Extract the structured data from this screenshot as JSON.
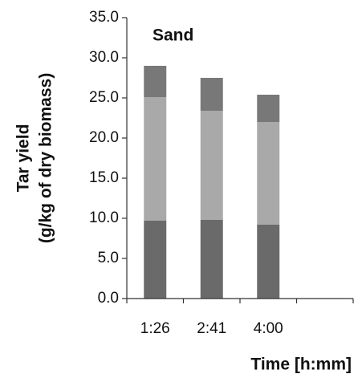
{
  "chart_data": {
    "type": "stacked-bar",
    "title": "Sand",
    "y_label": [
      "Tar yield",
      "(g/kg of dry biomass)"
    ],
    "x_label": "Time [h:mm]",
    "categories": [
      "1:26",
      "2:41",
      "4:00",
      null
    ],
    "series": [
      {
        "color": "#6a6a6a",
        "values": [
          9.7,
          9.8,
          9.2,
          null
        ]
      },
      {
        "color": "#a9a9a9",
        "values": [
          15.4,
          13.6,
          12.8,
          null
        ]
      },
      {
        "color": "#787878",
        "values": [
          3.9,
          4.1,
          3.4,
          null
        ]
      }
    ],
    "ylim": [
      0,
      35
    ],
    "yticks": [
      {
        "value": 0,
        "label": "0.0"
      },
      {
        "value": 5,
        "label": "5.0"
      },
      {
        "value": 10,
        "label": "10.0"
      },
      {
        "value": 15,
        "label": "15.0"
      },
      {
        "value": 20,
        "label": "20.0"
      },
      {
        "value": 25,
        "label": "25.0"
      },
      {
        "value": 30,
        "label": "30.0"
      },
      {
        "value": 35,
        "label": "35.0"
      }
    ],
    "grid": false
  }
}
